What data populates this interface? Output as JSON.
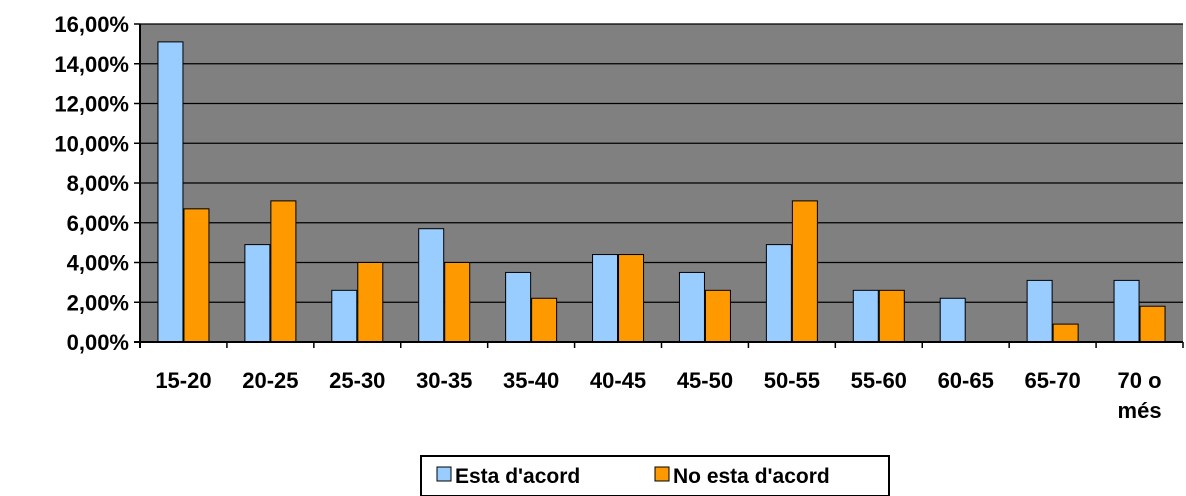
{
  "chart_data": {
    "type": "bar",
    "categories": [
      "15-20",
      "20-25",
      "25-30",
      "30-35",
      "35-40",
      "40-45",
      "45-50",
      "50-55",
      "55-60",
      "60-65",
      "65-70",
      "70 o més"
    ],
    "series": [
      {
        "name": "Esta d'acord",
        "color": "#99ccff",
        "values": [
          15.1,
          4.9,
          2.6,
          5.7,
          3.5,
          4.4,
          3.5,
          4.9,
          2.6,
          2.2,
          3.1,
          3.1
        ]
      },
      {
        "name": "No esta d'acord",
        "color": "#ff9900",
        "values": [
          6.7,
          7.1,
          4.0,
          4.0,
          2.2,
          4.4,
          2.6,
          7.1,
          2.6,
          0,
          0.9,
          1.8
        ]
      }
    ],
    "yticks": [
      "0,00%",
      "2,00%",
      "4,00%",
      "6,00%",
      "8,00%",
      "10,00%",
      "12,00%",
      "14,00%",
      "16,00%"
    ],
    "ylim": [
      0,
      16
    ],
    "grid": true,
    "plot_background": "#808080",
    "legend_position": "bottom"
  }
}
